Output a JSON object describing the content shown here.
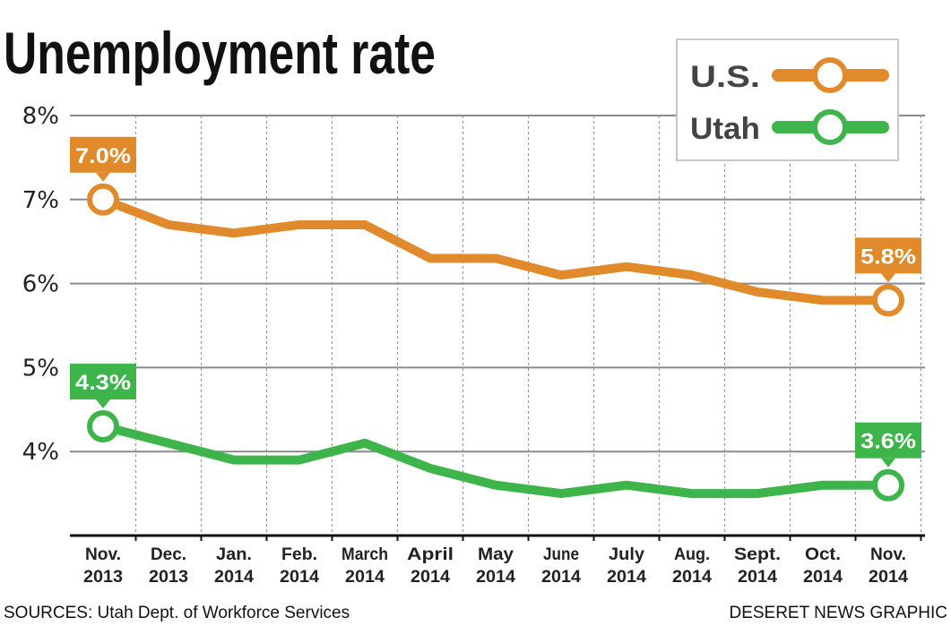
{
  "chart_data": {
    "type": "line",
    "title": "Unemployment rate",
    "categories": [
      [
        "Nov.",
        "2013"
      ],
      [
        "Dec.",
        "2013"
      ],
      [
        "Jan.",
        "2014"
      ],
      [
        "Feb.",
        "2014"
      ],
      [
        "March",
        "2014"
      ],
      [
        "April",
        "2014"
      ],
      [
        "May",
        "2014"
      ],
      [
        "June",
        "2014"
      ],
      [
        "July",
        "2014"
      ],
      [
        "Aug.",
        "2014"
      ],
      [
        "Sept.",
        "2014"
      ],
      [
        "Oct.",
        "2014"
      ],
      [
        "Nov.",
        "2014"
      ]
    ],
    "series": [
      {
        "name": "U.S.",
        "color": "#e08a2c",
        "values": [
          7.0,
          6.7,
          6.6,
          6.7,
          6.7,
          6.3,
          6.3,
          6.1,
          6.2,
          6.1,
          5.9,
          5.8,
          5.8
        ],
        "start_label": "7.0%",
        "end_label": "5.8%"
      },
      {
        "name": "Utah",
        "color": "#3db54a",
        "values": [
          4.3,
          4.1,
          3.9,
          3.9,
          4.1,
          3.8,
          3.6,
          3.5,
          3.6,
          3.5,
          3.5,
          3.6,
          3.6
        ],
        "start_label": "4.3%",
        "end_label": "3.6%"
      }
    ],
    "yticks": [
      "8%",
      "7%",
      "6%",
      "5%",
      "4%"
    ],
    "ytick_values": [
      8,
      7,
      6,
      5,
      4
    ],
    "ylim": [
      3,
      8
    ],
    "grid": true,
    "legend_position": "top-right"
  },
  "footer": {
    "source": "SOURCES: Utah Dept. of Workforce Services",
    "credit": "DESERET NEWS GRAPHIC"
  }
}
